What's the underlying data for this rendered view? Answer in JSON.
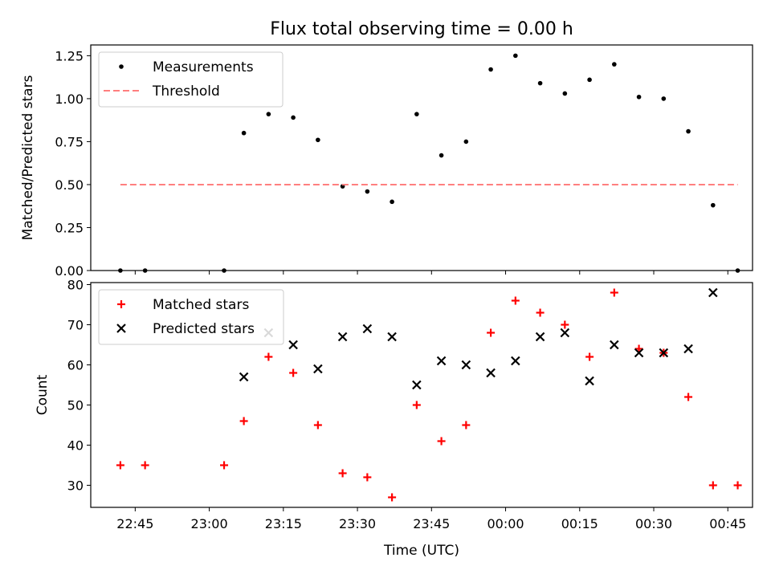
{
  "chart_data": [
    {
      "type": "scatter",
      "title": "Flux total observing time = 0.00 h",
      "xlabel": "",
      "ylabel": "Matched/Predicted stars",
      "ylim": [
        0,
        1.3125
      ],
      "yticks": [
        0.0,
        0.25,
        0.5,
        0.75,
        1.0,
        1.25
      ],
      "ytick_labels": [
        "0.00",
        "0.25",
        "0.50",
        "0.75",
        "1.00",
        "1.25"
      ],
      "legend_position": "top-left",
      "series": [
        {
          "name": "Measurements",
          "marker": "dot",
          "color": "#000000",
          "x": [
            "22:42",
            "22:47",
            "23:03",
            "23:07",
            "23:12",
            "23:17",
            "23:22",
            "23:27",
            "23:32",
            "23:37",
            "23:42",
            "23:47",
            "23:52",
            "23:57",
            "00:02",
            "00:07",
            "00:12",
            "00:17",
            "00:22",
            "00:27",
            "00:32",
            "00:37",
            "00:42",
            "00:47"
          ],
          "y": [
            0.0,
            0.0,
            0.0,
            0.8,
            0.91,
            0.89,
            0.76,
            0.49,
            0.46,
            0.4,
            0.91,
            0.67,
            0.75,
            1.17,
            1.25,
            1.09,
            1.03,
            1.11,
            1.2,
            1.01,
            1.0,
            0.81,
            0.38,
            0.0
          ]
        },
        {
          "name": "Threshold",
          "marker": "dashed-line",
          "color": "#ff7f7f",
          "x": [
            "22:42",
            "00:47"
          ],
          "y": [
            0.5,
            0.5
          ]
        }
      ]
    },
    {
      "type": "scatter",
      "title": "",
      "xlabel": "Time (UTC)",
      "ylabel": "Count",
      "ylim": [
        24.5,
        80.5
      ],
      "yticks": [
        30,
        40,
        50,
        60,
        70,
        80
      ],
      "ytick_labels": [
        "30",
        "40",
        "50",
        "60",
        "70",
        "80"
      ],
      "xticks": [
        "22:45",
        "23:00",
        "23:15",
        "23:30",
        "23:45",
        "00:00",
        "00:15",
        "00:30",
        "00:45"
      ],
      "legend_position": "top-left",
      "series": [
        {
          "name": "Matched stars",
          "marker": "plus",
          "color": "#ff0000",
          "x": [
            "22:42",
            "22:47",
            "23:03",
            "23:07",
            "23:12",
            "23:17",
            "23:22",
            "23:27",
            "23:32",
            "23:37",
            "23:42",
            "23:47",
            "23:52",
            "23:57",
            "00:02",
            "00:07",
            "00:12",
            "00:17",
            "00:22",
            "00:27",
            "00:32",
            "00:37",
            "00:42",
            "00:47"
          ],
          "y": [
            35,
            35,
            35,
            46,
            62,
            58,
            45,
            33,
            32,
            27,
            50,
            41,
            45,
            68,
            76,
            73,
            70,
            62,
            78,
            64,
            63,
            52,
            30,
            30
          ]
        },
        {
          "name": "Predicted stars",
          "marker": "x",
          "color": "#000000",
          "x": [
            "23:07",
            "23:12",
            "23:17",
            "23:22",
            "23:27",
            "23:32",
            "23:37",
            "23:42",
            "23:47",
            "23:52",
            "23:57",
            "00:02",
            "00:07",
            "00:12",
            "00:17",
            "00:22",
            "00:27",
            "00:32",
            "00:37",
            "00:42"
          ],
          "y": [
            57,
            68,
            65,
            59,
            67,
            69,
            67,
            55,
            61,
            60,
            58,
            61,
            67,
            68,
            56,
            65,
            63,
            63,
            64,
            78
          ]
        }
      ]
    }
  ]
}
